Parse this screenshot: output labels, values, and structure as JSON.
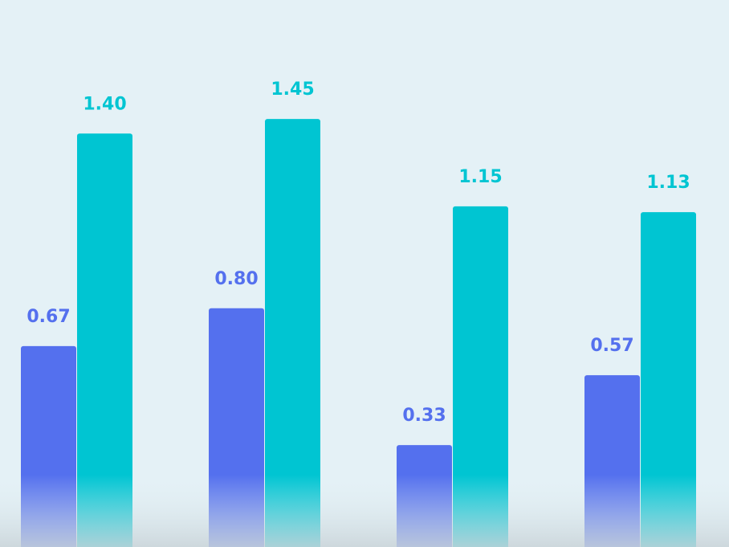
{
  "chart_data": {
    "type": "bar",
    "categories": [
      "",
      "",
      "",
      ""
    ],
    "series": [
      {
        "name": "",
        "color": "#5470ee",
        "values": [
          0.67,
          0.8,
          0.33,
          0.57
        ],
        "labels": [
          "0.67",
          "0.80",
          "0.33",
          "0.57"
        ]
      },
      {
        "name": "",
        "color": "#00c5d2",
        "values": [
          1.4,
          1.45,
          1.15,
          1.13
        ],
        "labels": [
          "1.40",
          "1.45",
          "1.15",
          "1.13"
        ]
      }
    ],
    "title": "",
    "xlabel": "",
    "ylabel": "",
    "ylim": [
      -0.02,
      1.85
    ],
    "grid": false,
    "legend": "none"
  }
}
